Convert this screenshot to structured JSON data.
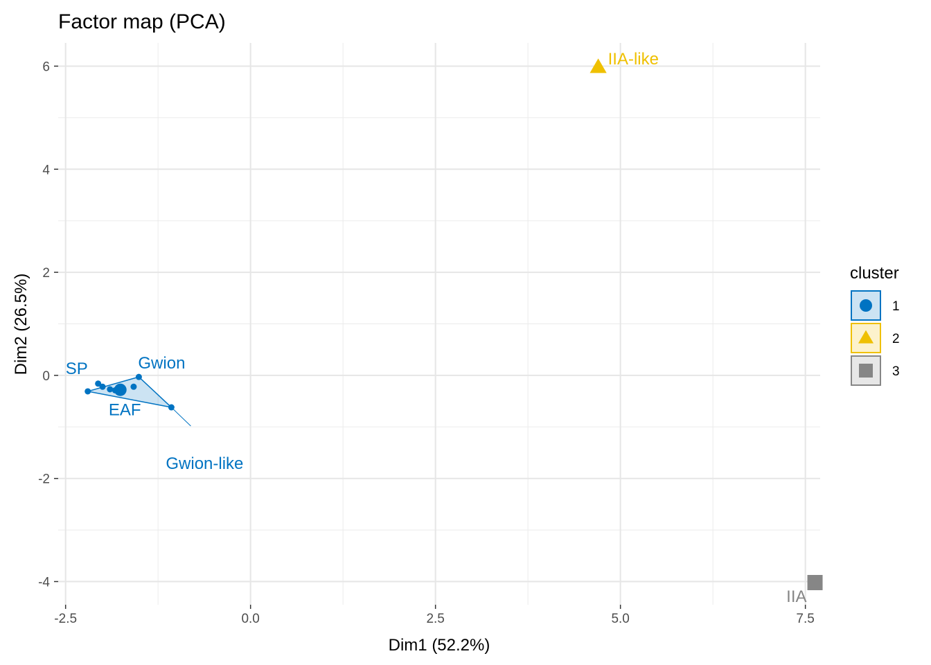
{
  "chart_data": {
    "type": "scatter",
    "title": "Factor map (PCA)",
    "xlabel": "Dim1 (52.2%)",
    "ylabel": "Dim2 (26.5%)",
    "xlim": [
      -2.6,
      7.7
    ],
    "ylim": [
      -4.45,
      6.45
    ],
    "x_ticks": [
      -2.5,
      0.0,
      2.5,
      5.0,
      7.5
    ],
    "x_tick_labels": [
      "-2.5",
      "0.0",
      "2.5",
      "5.0",
      "7.5"
    ],
    "y_ticks": [
      -4,
      -2,
      0,
      2,
      4,
      6
    ],
    "y_tick_labels": [
      "-4",
      "-2",
      "0",
      "2",
      "4",
      "6"
    ],
    "grid": true,
    "legend": {
      "title": "cluster",
      "placement": "right",
      "entries": [
        {
          "label": "1",
          "color": "#0073C2",
          "shape": "circle"
        },
        {
          "label": "2",
          "color": "#EFC000",
          "shape": "triangle"
        },
        {
          "label": "3",
          "color": "#868686",
          "shape": "square"
        }
      ]
    },
    "clusters": [
      {
        "name": "1",
        "color": "#0073C2",
        "shape": "circle",
        "hull": [
          [
            -2.2,
            -0.31
          ],
          [
            -1.51,
            -0.03
          ],
          [
            -1.07,
            -0.62
          ]
        ],
        "centroid": [
          -1.76,
          -0.28
        ],
        "points": [
          {
            "x": -2.2,
            "y": -0.31,
            "label": "SP"
          },
          {
            "x": -2.06,
            "y": -0.16,
            "label": ""
          },
          {
            "x": -2.0,
            "y": -0.22,
            "label": ""
          },
          {
            "x": -1.9,
            "y": -0.27,
            "label": ""
          },
          {
            "x": -1.83,
            "y": -0.29,
            "label": "EAF"
          },
          {
            "x": -1.58,
            "y": -0.22,
            "label": ""
          },
          {
            "x": -1.51,
            "y": -0.03,
            "label": "Gwion"
          },
          {
            "x": -1.07,
            "y": -0.62,
            "label": "Gwion-like"
          }
        ]
      },
      {
        "name": "2",
        "color": "#EFC000",
        "shape": "triangle",
        "centroid": [
          4.7,
          5.98
        ],
        "points": [
          {
            "x": 4.7,
            "y": 5.98,
            "label": "IIA-like"
          }
        ]
      },
      {
        "name": "3",
        "color": "#868686",
        "shape": "square",
        "centroid": [
          7.63,
          -4.02
        ],
        "points": [
          {
            "x": 7.63,
            "y": -4.02,
            "label": "IIA"
          }
        ]
      }
    ]
  }
}
